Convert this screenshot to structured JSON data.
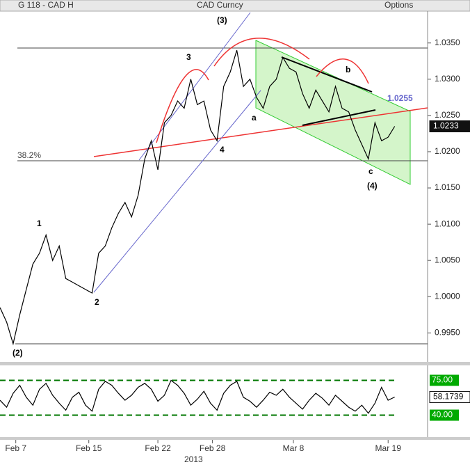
{
  "header": {
    "security": "G 118 - CAD H",
    "ticker": "CAD Curncy",
    "options": "Options"
  },
  "chart_data": [
    {
      "type": "line",
      "color": "#000000",
      "values": [
        0.9985,
        0.9965,
        0.9935,
        0.9975,
        1.001,
        1.0045,
        1.006,
        1.0085,
        1.005,
        1.007,
        1.0025,
        1.002,
        1.0015,
        1.001,
        1.0005,
        1.006,
        1.007,
        1.0095,
        1.0115,
        1.013,
        1.011,
        1.014,
        1.019,
        1.0215,
        1.0175,
        1.024,
        1.025,
        1.027,
        1.026,
        1.03,
        1.0265,
        1.027,
        1.023,
        1.0215,
        1.029,
        1.031,
        1.034,
        1.029,
        1.03,
        1.0275,
        1.026,
        1.029,
        1.03,
        1.033,
        1.0315,
        1.031,
        1.028,
        1.026,
        1.0285,
        1.027,
        1.0255,
        1.029,
        1.026,
        1.0255,
        1.023,
        1.021,
        1.019,
        1.024,
        1.0215,
        1.022,
        1.0235
      ],
      "xlim": [
        0,
        65
      ],
      "xticks": [
        {
          "value": 2.4,
          "label": "Feb 7"
        },
        {
          "value": 13.5,
          "label": "Feb 15"
        },
        {
          "value": 24,
          "label": "Feb 22"
        },
        {
          "value": 32.3,
          "label": "Feb 28"
        },
        {
          "value": 44.6,
          "label": "Mar 8"
        },
        {
          "value": 59,
          "label": "Mar 19"
        }
      ],
      "x_year": "2013",
      "ylim": [
        0.991,
        1.0392
      ],
      "yticks": [
        {
          "value": 0.995,
          "label": "0.9950"
        },
        {
          "value": 1.0,
          "label": "1.0000"
        },
        {
          "value": 1.005,
          "label": "1.0050"
        },
        {
          "value": 1.01,
          "label": "1.0100"
        },
        {
          "value": 1.015,
          "label": "1.0150"
        },
        {
          "value": 1.02,
          "label": "1.0200"
        },
        {
          "value": 1.025,
          "label": "1.0250"
        },
        {
          "value": 1.03,
          "label": "1.0300"
        },
        {
          "value": 1.035,
          "label": "1.0350"
        }
      ],
      "last_label": "1.0233",
      "annotations": [
        "(3)",
        "3",
        "1",
        "2",
        "4",
        "(2)",
        "a",
        "b",
        "c",
        "(4)",
        "38.2%",
        "1.0255"
      ]
    },
    {
      "type": "line",
      "color": "#000000",
      "values": [
        55,
        48,
        62,
        70,
        58,
        50,
        66,
        72,
        60,
        52,
        45,
        58,
        63,
        50,
        44,
        66,
        74,
        70,
        62,
        55,
        60,
        68,
        72,
        66,
        54,
        60,
        75,
        70,
        62,
        50,
        56,
        64,
        52,
        45,
        62,
        70,
        74,
        58,
        54,
        48,
        55,
        63,
        60,
        66,
        58,
        52,
        46,
        55,
        62,
        57,
        50,
        60,
        54,
        48,
        44,
        50,
        42,
        52,
        68,
        55,
        58.1739
      ],
      "xlim": [
        0,
        65
      ],
      "ylim": [
        18,
        90
      ],
      "yticks": [
        {
          "value": 75,
          "label": "75.00"
        },
        {
          "value": 40,
          "label": "40.00"
        }
      ],
      "last_label": "58.1739"
    }
  ]
}
